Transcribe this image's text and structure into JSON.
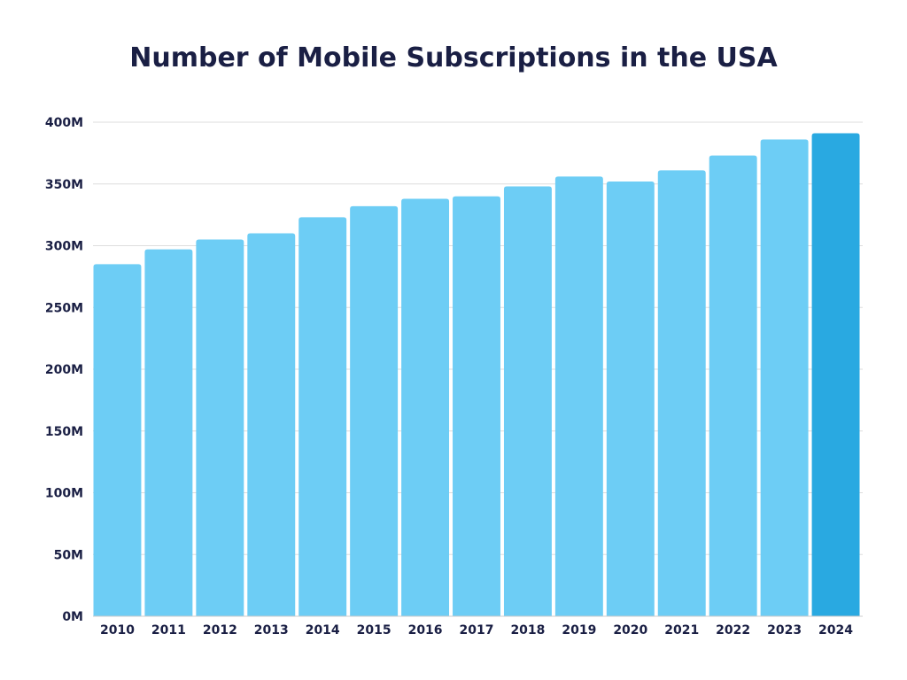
{
  "chart_data": {
    "type": "bar",
    "title": "Number of Mobile Subscriptions in the USA",
    "xlabel": "",
    "ylabel": "",
    "categories": [
      "2010",
      "2011",
      "2012",
      "2013",
      "2014",
      "2015",
      "2016",
      "2017",
      "2018",
      "2019",
      "2020",
      "2021",
      "2022",
      "2023",
      "2024"
    ],
    "values": [
      285,
      297,
      305,
      310,
      323,
      332,
      338,
      340,
      348,
      356,
      352,
      361,
      373,
      386,
      391
    ],
    "unit": "M",
    "ylim": [
      0,
      400
    ],
    "yticks": [
      "0M",
      "50M",
      "100M",
      "150M",
      "200M",
      "250M",
      "300M",
      "350M",
      "400M"
    ],
    "grid": true,
    "colors": {
      "bar": "#6dcdf5",
      "highlight": "#29a9e1",
      "highlight_category": "2024",
      "grid": "#dddddd",
      "text": "#1a1f44"
    }
  }
}
